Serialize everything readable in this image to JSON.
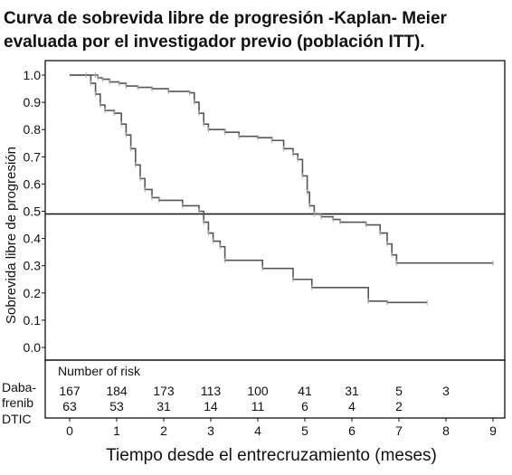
{
  "chart_data": {
    "type": "line",
    "subtype": "kaplan-meier-step",
    "title_lines": [
      "Curva de sobrevida libre de progresión -Kaplan- Meier",
      "evaluada por el investigador previo (población ITT)."
    ],
    "xlabel": "Tiempo desde el entrecruzamiento (meses)",
    "ylabel": "Sobrevida libre de progresión",
    "xlim": [
      0,
      9
    ],
    "ylim": [
      0,
      1
    ],
    "x_ticks": [
      "0",
      "1",
      "2",
      "3",
      "4",
      "5",
      "6",
      "7",
      "8",
      "9"
    ],
    "y_ticks": [
      "0.0",
      "0.1",
      "0.2",
      "0.3",
      "0.4",
      "0.5",
      "0.6",
      "0.7",
      "0.8",
      "0.9",
      "1.0"
    ],
    "reference_line": {
      "y": 0.49
    },
    "series": [
      {
        "color": "#555555",
        "points": [
          [
            0,
            1.0
          ],
          [
            0.55,
            1.0
          ],
          [
            0.6,
            0.99
          ],
          [
            0.7,
            0.985
          ],
          [
            0.85,
            0.975
          ],
          [
            1.05,
            0.97
          ],
          [
            1.2,
            0.96
          ],
          [
            1.45,
            0.955
          ],
          [
            1.75,
            0.95
          ],
          [
            2.1,
            0.94
          ],
          [
            2.55,
            0.935
          ],
          [
            2.65,
            0.9
          ],
          [
            2.75,
            0.86
          ],
          [
            2.85,
            0.82
          ],
          [
            2.95,
            0.8
          ],
          [
            3.3,
            0.79
          ],
          [
            3.6,
            0.775
          ],
          [
            4.0,
            0.77
          ],
          [
            4.3,
            0.76
          ],
          [
            4.55,
            0.73
          ],
          [
            4.75,
            0.71
          ],
          [
            4.85,
            0.69
          ],
          [
            4.95,
            0.63
          ],
          [
            5.05,
            0.57
          ],
          [
            5.1,
            0.52
          ],
          [
            5.2,
            0.49
          ],
          [
            5.35,
            0.48
          ],
          [
            5.6,
            0.47
          ],
          [
            5.75,
            0.46
          ],
          [
            6.3,
            0.45
          ],
          [
            6.6,
            0.42
          ],
          [
            6.75,
            0.38
          ],
          [
            6.85,
            0.34
          ],
          [
            6.95,
            0.31
          ],
          [
            9.0,
            0.31
          ]
        ]
      },
      {
        "color": "#555555",
        "points": [
          [
            0,
            1.0
          ],
          [
            0.35,
            1.0
          ],
          [
            0.45,
            0.97
          ],
          [
            0.55,
            0.93
          ],
          [
            0.65,
            0.89
          ],
          [
            0.75,
            0.87
          ],
          [
            0.95,
            0.86
          ],
          [
            1.1,
            0.82
          ],
          [
            1.2,
            0.78
          ],
          [
            1.3,
            0.73
          ],
          [
            1.4,
            0.67
          ],
          [
            1.5,
            0.62
          ],
          [
            1.6,
            0.58
          ],
          [
            1.75,
            0.55
          ],
          [
            1.9,
            0.54
          ],
          [
            2.4,
            0.52
          ],
          [
            2.75,
            0.5
          ],
          [
            2.85,
            0.46
          ],
          [
            2.95,
            0.42
          ],
          [
            3.05,
            0.39
          ],
          [
            3.2,
            0.37
          ],
          [
            3.3,
            0.32
          ],
          [
            4.1,
            0.29
          ],
          [
            4.75,
            0.25
          ],
          [
            5.15,
            0.22
          ],
          [
            6.35,
            0.17
          ],
          [
            6.75,
            0.165
          ],
          [
            7.6,
            0.165
          ]
        ]
      }
    ],
    "risk_table": {
      "title": "Number of risk",
      "rows": [
        {
          "label_lines": [
            "Daba-",
            "frenib"
          ],
          "values": [
            "167",
            "184",
            "173",
            "113",
            "100",
            "41",
            "31",
            "5",
            "3"
          ]
        },
        {
          "label_lines": [
            "DTIC"
          ],
          "values": [
            "63",
            "53",
            "31",
            "14",
            "11",
            "6",
            "4",
            "2"
          ]
        }
      ]
    }
  }
}
